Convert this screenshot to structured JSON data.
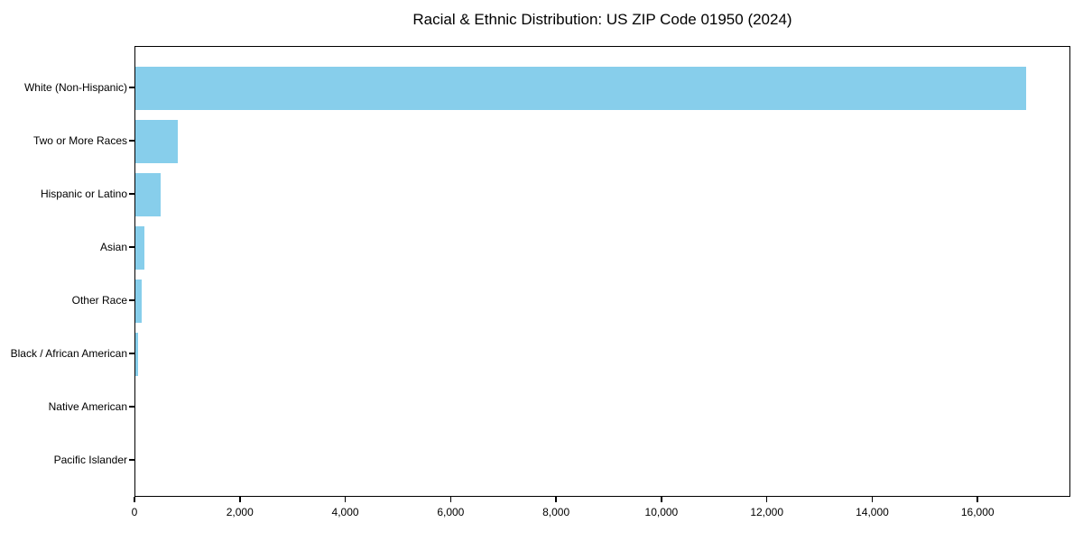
{
  "chart_data": {
    "type": "bar",
    "orientation": "horizontal",
    "title": "Racial & Ethnic Distribution: US ZIP Code 01950 (2024)",
    "categories": [
      "White (Non-Hispanic)",
      "Two or More Races",
      "Hispanic or Latino",
      "Asian",
      "Other Race",
      "Black / African American",
      "Native American",
      "Pacific Islander"
    ],
    "values": [
      16900,
      800,
      480,
      170,
      120,
      50,
      0,
      0
    ],
    "xlabel": "",
    "ylabel": "",
    "xlim": [
      0,
      17760
    ],
    "xticks": [
      0,
      2000,
      4000,
      6000,
      8000,
      10000,
      12000,
      14000,
      16000
    ],
    "xtick_labels": [
      "0",
      "2,000",
      "4,000",
      "6,000",
      "8,000",
      "10,000",
      "12,000",
      "14,000",
      "16,000"
    ],
    "bar_color": "#87CEEB",
    "background": "#FFFFFF",
    "grid": false,
    "legend": null
  }
}
